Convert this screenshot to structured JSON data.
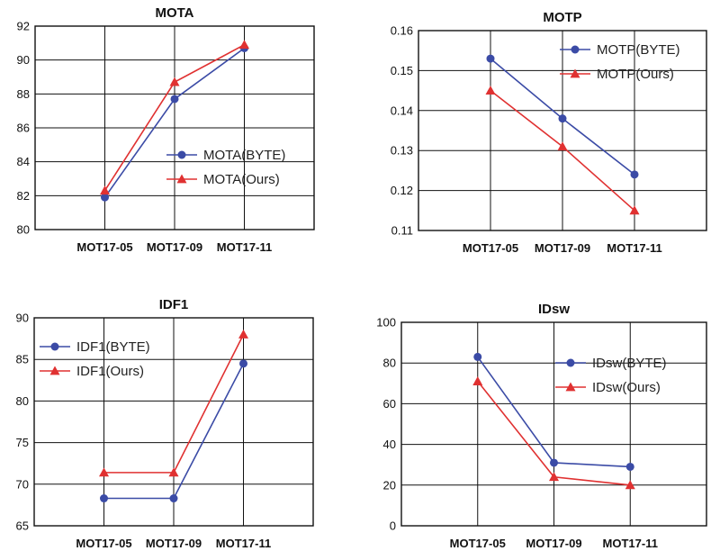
{
  "colors": {
    "byte": "#3b4ba6",
    "ours": "#e03131"
  },
  "chart_data": [
    {
      "type": "line",
      "title": "MOTA",
      "categories": [
        "MOT17-05",
        "MOT17-09",
        "MOT17-11"
      ],
      "ylim": [
        80,
        92
      ],
      "yticks": [
        "80",
        "82",
        "84",
        "86",
        "88",
        "90",
        "92"
      ],
      "legend_position": "center-right",
      "series": [
        {
          "name": "MOTA(BYTE)",
          "marker": "circle",
          "values": [
            81.9,
            87.7,
            90.7
          ]
        },
        {
          "name": "MOTA(Ours)",
          "marker": "triangle",
          "values": [
            82.3,
            88.7,
            90.9
          ]
        }
      ]
    },
    {
      "type": "line",
      "title": "MOTP",
      "categories": [
        "MOT17-05",
        "MOT17-09",
        "MOT17-11"
      ],
      "ylim": [
        0.11,
        0.16
      ],
      "yticks": [
        "0.11",
        "0.12",
        "0.13",
        "0.14",
        "0.15",
        "0.16"
      ],
      "legend_position": "top-right",
      "series": [
        {
          "name": "MOTP(BYTE)",
          "marker": "circle",
          "values": [
            0.153,
            0.138,
            0.124
          ]
        },
        {
          "name": "MOTP(Ours)",
          "marker": "triangle",
          "values": [
            0.145,
            0.131,
            0.115
          ]
        }
      ]
    },
    {
      "type": "line",
      "title": "IDF1",
      "categories": [
        "MOT17-05",
        "MOT17-09",
        "MOT17-11"
      ],
      "ylim": [
        65,
        90
      ],
      "yticks": [
        "65",
        "70",
        "75",
        "80",
        "85",
        "90"
      ],
      "legend_position": "top-left",
      "series": [
        {
          "name": "IDF1(BYTE)",
          "marker": "circle",
          "values": [
            68.3,
            68.3,
            84.5
          ]
        },
        {
          "name": "IDF1(Ours)",
          "marker": "triangle",
          "values": [
            71.4,
            71.4,
            88.0
          ]
        }
      ]
    },
    {
      "type": "line",
      "title": "IDsw",
      "categories": [
        "MOT17-05",
        "MOT17-09",
        "MOT17-11"
      ],
      "ylim": [
        0,
        100
      ],
      "yticks": [
        "0",
        "20",
        "40",
        "60",
        "80",
        "100"
      ],
      "legend_position": "top-right",
      "series": [
        {
          "name": "IDsw(BYTE)",
          "marker": "circle",
          "values": [
            83,
            31,
            29
          ]
        },
        {
          "name": "IDsw(Ours)",
          "marker": "triangle",
          "values": [
            71,
            24,
            20
          ]
        }
      ]
    }
  ]
}
